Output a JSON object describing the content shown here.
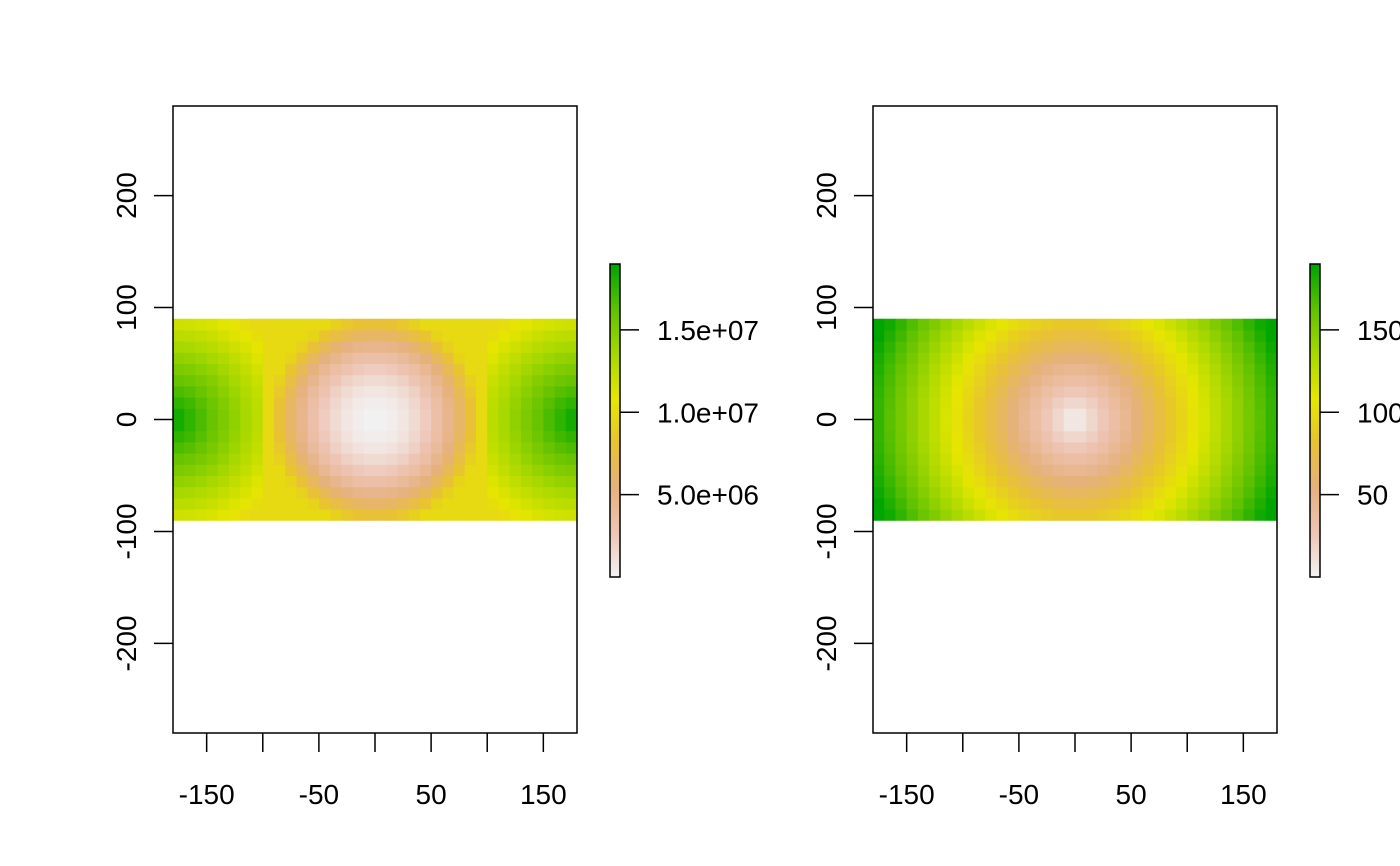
{
  "chart_data": [
    {
      "type": "heatmap",
      "title": "",
      "xlabel": "",
      "ylabel": "",
      "xlim": [
        -180,
        180
      ],
      "ylim": [
        -280,
        280
      ],
      "x_ticks": [
        -150,
        -100,
        -50,
        0,
        50,
        100,
        150
      ],
      "x_tick_labels": [
        "-150",
        "",
        "-50",
        "",
        "50",
        "",
        "150"
      ],
      "y_ticks": [
        -200,
        -100,
        0,
        100,
        200
      ],
      "y_tick_labels": [
        "-200",
        "-100",
        "0",
        "100",
        "200"
      ],
      "raster": {
        "x_range": [
          -180,
          180
        ],
        "y_range": [
          -90,
          90
        ],
        "cell_size": 10,
        "center_value": 0,
        "min_value": 0,
        "max_value": 19000000,
        "description_values": "radially increasing from centre; maximum at left/right edges near y=0"
      },
      "legend": {
        "position": "right",
        "range": [
          0,
          19000000
        ],
        "ticks": [
          5000000,
          10000000,
          15000000
        ],
        "tick_labels": [
          "5.0e+06",
          "1.0e+07",
          "1.5e+07"
        ]
      },
      "palette": [
        "#f2f2f2",
        "#eec4b4",
        "#e6b17e",
        "#e8c232",
        "#e6e600",
        "#a8d800",
        "#62c200",
        "#00a600"
      ]
    },
    {
      "type": "heatmap",
      "title": "",
      "xlabel": "",
      "ylabel": "",
      "xlim": [
        -180,
        180
      ],
      "ylim": [
        -280,
        280
      ],
      "x_ticks": [
        -150,
        -100,
        -50,
        0,
        50,
        100,
        150
      ],
      "x_tick_labels": [
        "-150",
        "",
        "-50",
        "",
        "50",
        "",
        "150"
      ],
      "y_ticks": [
        -200,
        -100,
        0,
        100,
        200
      ],
      "y_tick_labels": [
        "-200",
        "-100",
        "0",
        "100",
        "200"
      ],
      "raster": {
        "x_range": [
          -180,
          180
        ],
        "y_range": [
          -90,
          90
        ],
        "cell_size": 10,
        "center_value": 0,
        "min_value": 0,
        "max_value": 190
      },
      "legend": {
        "position": "right",
        "range": [
          0,
          190
        ],
        "ticks": [
          50,
          100,
          150
        ],
        "tick_labels": [
          "50",
          "100",
          "150"
        ]
      },
      "palette": [
        "#f2f2f2",
        "#eec4b4",
        "#e6b17e",
        "#e8c232",
        "#e6e600",
        "#a8d800",
        "#62c200",
        "#00a600"
      ]
    }
  ]
}
